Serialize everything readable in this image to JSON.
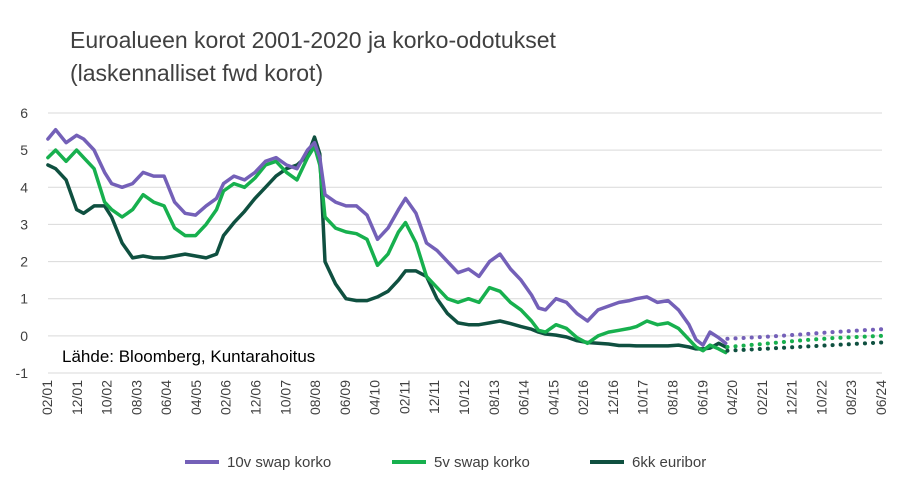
{
  "chart_data": {
    "type": "line",
    "title_line1": "Euroalueen korot 2001-2020 ja korko-odotukset",
    "title_line2": "(laskennalliset fwd korot)",
    "source_note": "Lähde: Bloomberg, Kuntarahoitus",
    "ylim": [
      -1,
      6
    ],
    "y_ticks": [
      "6",
      "5",
      "4",
      "3",
      "2",
      "1",
      "0",
      "-1"
    ],
    "x_ticks": [
      "02/01",
      "12/01",
      "10/02",
      "08/03",
      "06/04",
      "04/05",
      "02/06",
      "12/06",
      "10/07",
      "08/08",
      "06/09",
      "04/10",
      "02/11",
      "12/11",
      "10/12",
      "08/13",
      "06/14",
      "04/15",
      "02/16",
      "12/16",
      "10/17",
      "08/18",
      "06/19",
      "04/20",
      "02/21",
      "12/21",
      "10/22",
      "08/23",
      "06/24"
    ],
    "x_range": [
      "2001-02",
      "2024-12"
    ],
    "grid": "horizontal",
    "legend_position": "bottom",
    "colors": {
      "10v": "#7460b8",
      "5v": "#17b04e",
      "6kk": "#0f5040",
      "grid": "#d9d9d9",
      "text": "#404040"
    },
    "legend": [
      "10v swap korko",
      "5v swap korko",
      "6kk euribor"
    ],
    "series": [
      {
        "name": "10v swap korko",
        "key": "10v",
        "x": [
          2001.08,
          2001.3,
          2001.6,
          2001.9,
          2002.1,
          2002.4,
          2002.7,
          2002.9,
          2003.2,
          2003.5,
          2003.8,
          2004.1,
          2004.4,
          2004.7,
          2005.0,
          2005.3,
          2005.6,
          2005.9,
          2006.1,
          2006.4,
          2006.7,
          2007.0,
          2007.3,
          2007.6,
          2007.9,
          2008.2,
          2008.5,
          2008.7,
          2008.85,
          2009.0,
          2009.3,
          2009.6,
          2009.9,
          2010.2,
          2010.5,
          2010.8,
          2011.1,
          2011.3,
          2011.6,
          2011.9,
          2012.2,
          2012.5,
          2012.8,
          2013.1,
          2013.4,
          2013.7,
          2014.0,
          2014.3,
          2014.6,
          2014.9,
          2015.1,
          2015.3,
          2015.6,
          2015.9,
          2016.2,
          2016.5,
          2016.8,
          2017.1,
          2017.4,
          2017.7,
          2017.9,
          2018.2,
          2018.5,
          2018.8,
          2019.1,
          2019.4,
          2019.6,
          2019.8,
          2020.0,
          2020.25,
          2020.45
        ],
        "values": [
          5.3,
          5.55,
          5.2,
          5.4,
          5.3,
          5.0,
          4.4,
          4.1,
          4.0,
          4.1,
          4.4,
          4.3,
          4.3,
          3.6,
          3.3,
          3.25,
          3.5,
          3.7,
          4.1,
          4.3,
          4.2,
          4.4,
          4.7,
          4.8,
          4.6,
          4.5,
          5.0,
          5.2,
          4.8,
          3.8,
          3.6,
          3.5,
          3.5,
          3.25,
          2.6,
          2.9,
          3.4,
          3.7,
          3.3,
          2.5,
          2.3,
          2.0,
          1.7,
          1.8,
          1.6,
          2.0,
          2.2,
          1.8,
          1.5,
          1.1,
          0.75,
          0.7,
          1.0,
          0.9,
          0.6,
          0.4,
          0.7,
          0.8,
          0.9,
          0.95,
          1.0,
          1.05,
          0.9,
          0.95,
          0.7,
          0.3,
          -0.1,
          -0.25,
          0.1,
          -0.05,
          -0.2
        ]
      },
      {
        "name": "5v swap korko",
        "key": "5v",
        "x": [
          2001.08,
          2001.3,
          2001.6,
          2001.9,
          2002.1,
          2002.4,
          2002.7,
          2002.9,
          2003.2,
          2003.5,
          2003.8,
          2004.1,
          2004.4,
          2004.7,
          2005.0,
          2005.3,
          2005.6,
          2005.9,
          2006.1,
          2006.4,
          2006.7,
          2007.0,
          2007.3,
          2007.6,
          2007.9,
          2008.2,
          2008.5,
          2008.7,
          2008.85,
          2009.0,
          2009.3,
          2009.6,
          2009.9,
          2010.2,
          2010.5,
          2010.8,
          2011.1,
          2011.3,
          2011.6,
          2011.9,
          2012.2,
          2012.5,
          2012.8,
          2013.1,
          2013.4,
          2013.7,
          2014.0,
          2014.3,
          2014.6,
          2014.9,
          2015.1,
          2015.3,
          2015.6,
          2015.9,
          2016.2,
          2016.5,
          2016.8,
          2017.1,
          2017.4,
          2017.7,
          2017.9,
          2018.2,
          2018.5,
          2018.8,
          2019.1,
          2019.4,
          2019.6,
          2019.8,
          2020.0,
          2020.25,
          2020.45
        ],
        "values": [
          4.8,
          5.0,
          4.7,
          5.0,
          4.8,
          4.5,
          3.6,
          3.4,
          3.2,
          3.4,
          3.8,
          3.6,
          3.5,
          2.9,
          2.7,
          2.7,
          3.0,
          3.4,
          3.9,
          4.1,
          4.0,
          4.25,
          4.6,
          4.7,
          4.4,
          4.2,
          4.8,
          5.1,
          4.6,
          3.2,
          2.9,
          2.8,
          2.75,
          2.6,
          1.9,
          2.2,
          2.8,
          3.05,
          2.5,
          1.6,
          1.3,
          1.0,
          0.9,
          1.0,
          0.9,
          1.3,
          1.2,
          0.9,
          0.7,
          0.4,
          0.15,
          0.1,
          0.3,
          0.2,
          -0.05,
          -0.2,
          0.0,
          0.1,
          0.15,
          0.2,
          0.25,
          0.4,
          0.3,
          0.35,
          0.2,
          -0.1,
          -0.3,
          -0.4,
          -0.25,
          -0.35,
          -0.45
        ]
      },
      {
        "name": "6kk euribor",
        "key": "6kk",
        "x": [
          2001.08,
          2001.3,
          2001.6,
          2001.9,
          2002.1,
          2002.4,
          2002.7,
          2002.9,
          2003.2,
          2003.5,
          2003.8,
          2004.1,
          2004.4,
          2004.7,
          2005.0,
          2005.3,
          2005.6,
          2005.9,
          2006.1,
          2006.4,
          2006.7,
          2007.0,
          2007.3,
          2007.6,
          2007.9,
          2008.2,
          2008.5,
          2008.7,
          2008.85,
          2009.0,
          2009.3,
          2009.6,
          2009.9,
          2010.2,
          2010.5,
          2010.8,
          2011.1,
          2011.3,
          2011.6,
          2011.9,
          2012.2,
          2012.5,
          2012.8,
          2013.1,
          2013.4,
          2013.7,
          2014.0,
          2014.3,
          2014.6,
          2014.9,
          2015.1,
          2015.3,
          2015.6,
          2015.9,
          2016.2,
          2016.5,
          2016.8,
          2017.1,
          2017.4,
          2017.7,
          2017.9,
          2018.2,
          2018.5,
          2018.8,
          2019.1,
          2019.4,
          2019.6,
          2019.8,
          2020.0,
          2020.25,
          2020.45
        ],
        "values": [
          4.6,
          4.5,
          4.2,
          3.4,
          3.3,
          3.5,
          3.5,
          3.2,
          2.5,
          2.1,
          2.15,
          2.1,
          2.1,
          2.15,
          2.2,
          2.15,
          2.1,
          2.2,
          2.7,
          3.05,
          3.35,
          3.7,
          4.0,
          4.3,
          4.5,
          4.6,
          4.85,
          5.35,
          4.9,
          2.0,
          1.4,
          1.0,
          0.95,
          0.95,
          1.05,
          1.2,
          1.5,
          1.75,
          1.75,
          1.6,
          1.0,
          0.6,
          0.35,
          0.3,
          0.3,
          0.35,
          0.4,
          0.33,
          0.25,
          0.18,
          0.1,
          0.05,
          0.02,
          -0.03,
          -0.13,
          -0.18,
          -0.2,
          -0.22,
          -0.26,
          -0.26,
          -0.27,
          -0.27,
          -0.27,
          -0.27,
          -0.25,
          -0.3,
          -0.35,
          -0.35,
          -0.33,
          -0.2,
          -0.3
        ]
      }
    ],
    "forecast": [
      {
        "key": "10v",
        "x": [
          2020.5,
          2021.5,
          2022.5,
          2023.5,
          2024.9
        ],
        "values": [
          -0.08,
          -0.03,
          0.03,
          0.1,
          0.18
        ]
      },
      {
        "key": "5v",
        "x": [
          2020.5,
          2021.5,
          2022.5,
          2023.5,
          2024.9
        ],
        "values": [
          -0.3,
          -0.22,
          -0.13,
          -0.06,
          0.0
        ]
      },
      {
        "key": "6kk",
        "x": [
          2020.5,
          2021.5,
          2022.5,
          2023.5,
          2024.9
        ],
        "values": [
          -0.4,
          -0.35,
          -0.3,
          -0.25,
          -0.18
        ]
      }
    ]
  }
}
